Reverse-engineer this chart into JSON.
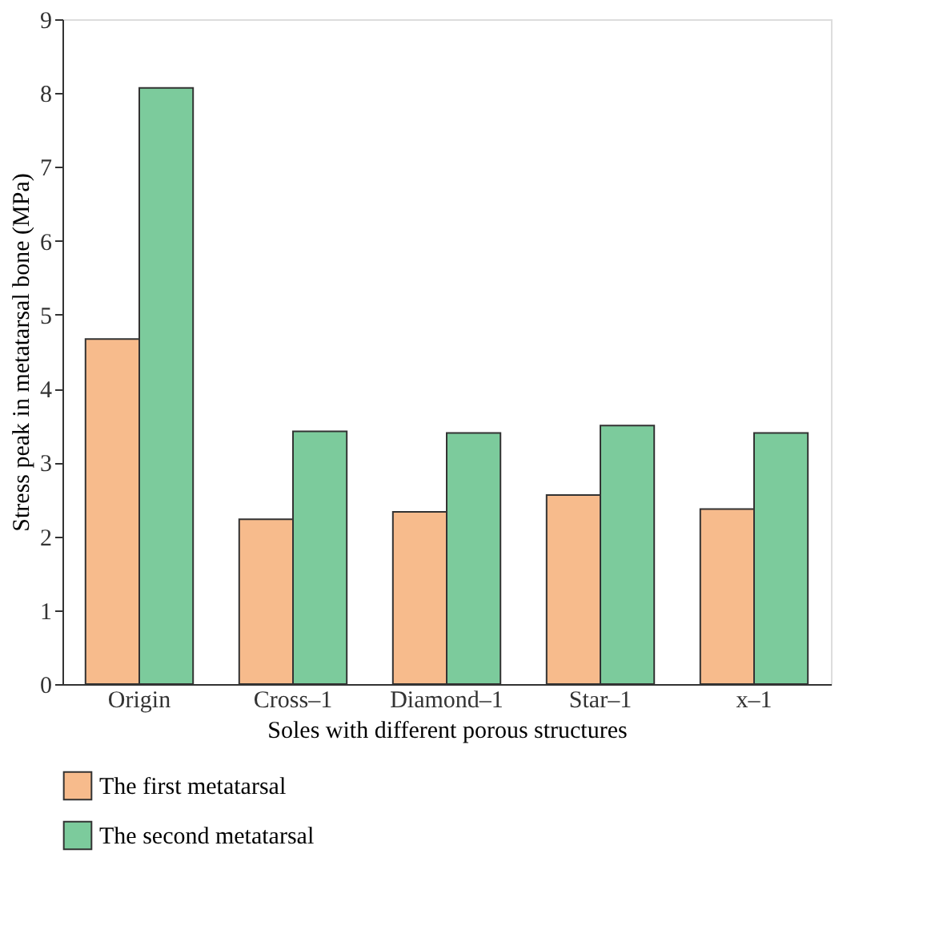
{
  "chart_data": {
    "type": "bar",
    "xlabel": "Soles with different porous structures",
    "ylabel": "Stress peak in metatarsal bone (MPa)",
    "categories": [
      "Origin",
      "Cross–1",
      "Diamond–1",
      "Star–1",
      "x–1"
    ],
    "series": [
      {
        "name": "The first metatarsal",
        "color": "#f7bb8c",
        "values": [
          4.67,
          2.23,
          2.33,
          2.56,
          2.37
        ]
      },
      {
        "name": "The second metatarsal",
        "color": "#7ccb9c",
        "values": [
          8.07,
          3.42,
          3.4,
          3.5,
          3.4
        ]
      }
    ],
    "ylim": [
      0,
      9
    ],
    "yticks": [
      0,
      1,
      2,
      3,
      4,
      5,
      6,
      7,
      8,
      9
    ],
    "grid": false,
    "legend": "bottom"
  }
}
